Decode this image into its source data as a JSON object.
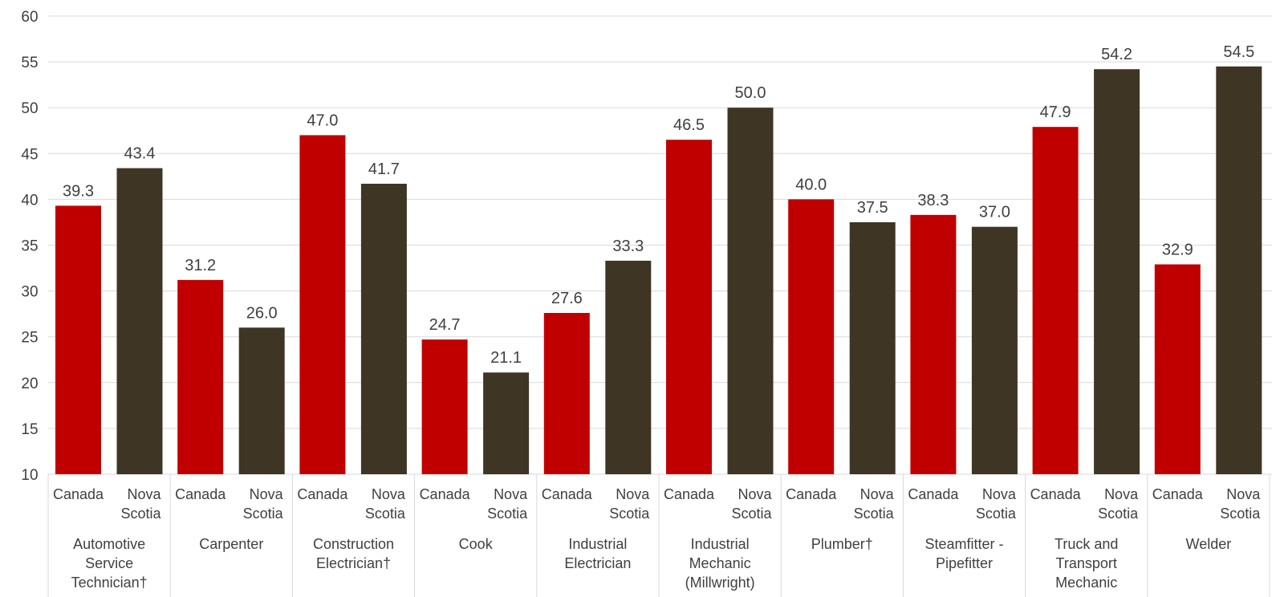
{
  "chart_data": {
    "type": "bar",
    "ylim": [
      10,
      60
    ],
    "yticks": [
      10,
      15,
      20,
      25,
      30,
      35,
      40,
      45,
      50,
      55,
      60
    ],
    "grid": true,
    "colors": {
      "Canada": "#c00000",
      "Nova Scotia": "#3e3525"
    },
    "groups": [
      {
        "trade": [
          "Automotive",
          "Service",
          "Technician†"
        ],
        "canada": 39.3,
        "nova_scotia": 43.4
      },
      {
        "trade": [
          "Carpenter"
        ],
        "canada": 31.2,
        "nova_scotia": 26.0
      },
      {
        "trade": [
          "Construction",
          "Electrician†"
        ],
        "canada": 47.0,
        "nova_scotia": 41.7
      },
      {
        "trade": [
          "Cook"
        ],
        "canada": 24.7,
        "nova_scotia": 21.1
      },
      {
        "trade": [
          "Industrial",
          "Electrician"
        ],
        "canada": 27.6,
        "nova_scotia": 33.3
      },
      {
        "trade": [
          "Industrial",
          "Mechanic",
          "(Millwright)"
        ],
        "canada": 46.5,
        "nova_scotia": 50.0
      },
      {
        "trade": [
          "Plumber†"
        ],
        "canada": 40.0,
        "nova_scotia": 37.5
      },
      {
        "trade": [
          "Steamfitter -",
          "Pipefitter"
        ],
        "canada": 38.3,
        "nova_scotia": 37.0
      },
      {
        "trade": [
          "Truck and",
          "Transport",
          "Mechanic"
        ],
        "canada": 47.9,
        "nova_scotia": 54.2
      },
      {
        "trade": [
          "Welder"
        ],
        "canada": 32.9,
        "nova_scotia": 54.5
      }
    ],
    "sub_labels": {
      "canada": [
        "Canada"
      ],
      "nova_scotia": [
        "Nova",
        "Scotia"
      ]
    }
  }
}
